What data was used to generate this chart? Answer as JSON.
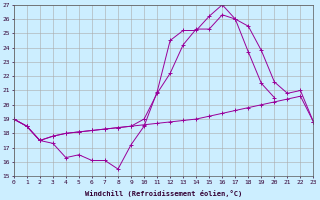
{
  "xlabel": "Windchill (Refroidissement éolien,°C)",
  "background_color": "#cceeff",
  "grid_color": "#aaaaaa",
  "line_color": "#990099",
  "xlim": [
    0,
    23
  ],
  "ylim": [
    15,
    27
  ],
  "xticks": [
    0,
    1,
    2,
    3,
    4,
    5,
    6,
    7,
    8,
    9,
    10,
    11,
    12,
    13,
    14,
    15,
    16,
    17,
    18,
    19,
    20,
    21,
    22,
    23
  ],
  "yticks": [
    15,
    16,
    17,
    18,
    19,
    20,
    21,
    22,
    23,
    24,
    25,
    26,
    27
  ],
  "series_x": [
    [
      0,
      1,
      2,
      3,
      4,
      5,
      6,
      7,
      8,
      9,
      10,
      11,
      12,
      13,
      14,
      15,
      16,
      17,
      18,
      19,
      20
    ],
    [
      0,
      1,
      2,
      3,
      4,
      5,
      6,
      7,
      8,
      9,
      10,
      11,
      12,
      13,
      14,
      15,
      16,
      17,
      18,
      19,
      20,
      21,
      22,
      23
    ],
    [
      0,
      1,
      2,
      3,
      4,
      5,
      6,
      7,
      8,
      9,
      10,
      11,
      12,
      13,
      14,
      15,
      16,
      17,
      18,
      19,
      20,
      21,
      22,
      23
    ]
  ],
  "series_y": [
    [
      19.0,
      18.5,
      17.5,
      17.3,
      16.3,
      16.5,
      16.1,
      16.1,
      15.5,
      17.2,
      18.5,
      20.9,
      24.5,
      25.2,
      25.2,
      26.2,
      27.0,
      26.0,
      23.7,
      21.5,
      20.5
    ],
    [
      19.0,
      18.5,
      17.5,
      17.8,
      18.0,
      18.1,
      18.2,
      18.3,
      18.4,
      18.5,
      18.6,
      18.7,
      18.8,
      18.9,
      19.0,
      19.2,
      19.4,
      19.6,
      19.8,
      20.0,
      20.2,
      20.4,
      20.6,
      18.8
    ],
    [
      19.0,
      18.5,
      17.5,
      17.8,
      18.0,
      18.1,
      18.2,
      18.3,
      18.4,
      18.5,
      19.0,
      20.8,
      22.2,
      24.2,
      25.3,
      25.3,
      26.3,
      26.0,
      25.5,
      23.8,
      21.6,
      20.8,
      21.0,
      18.8
    ]
  ]
}
